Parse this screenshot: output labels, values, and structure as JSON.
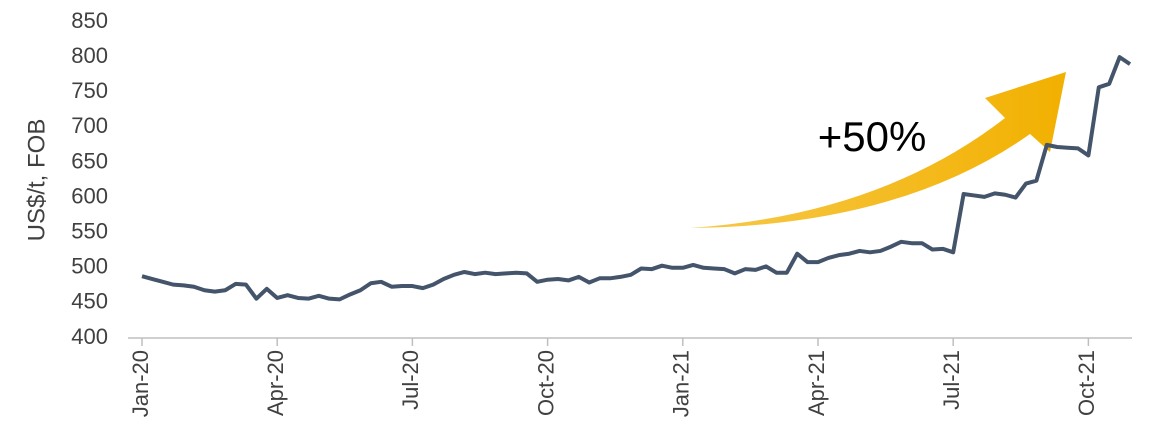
{
  "chart_data": {
    "type": "line",
    "y_label": "US$/t, FOB",
    "annotation": "+50%",
    "categories": [
      "Jan-20",
      null,
      null,
      null,
      null,
      null,
      null,
      null,
      null,
      null,
      null,
      null,
      null,
      "Apr-20",
      null,
      null,
      null,
      null,
      null,
      null,
      null,
      null,
      null,
      null,
      null,
      null,
      "Jul-20",
      null,
      null,
      null,
      null,
      null,
      null,
      null,
      null,
      null,
      null,
      null,
      null,
      "Oct-20",
      null,
      null,
      null,
      null,
      null,
      null,
      null,
      null,
      null,
      null,
      null,
      null,
      "Jan-21",
      null,
      null,
      null,
      null,
      null,
      null,
      null,
      null,
      null,
      null,
      null,
      null,
      "Apr-21",
      null,
      null,
      null,
      null,
      null,
      null,
      null,
      null,
      null,
      null,
      null,
      null,
      "Jul-21",
      null,
      null,
      null,
      null,
      null,
      null,
      null,
      null,
      null,
      null,
      null,
      null,
      "Oct-21",
      null,
      null,
      null,
      null
    ],
    "series": [
      {
        "color": "#44546a",
        "values": [
          488,
          484,
          480,
          476,
          475,
          473,
          468,
          466,
          468,
          477,
          476,
          456,
          470,
          457,
          461,
          457,
          456,
          460,
          456,
          455,
          462,
          468,
          478,
          480,
          473,
          474,
          474,
          471,
          476,
          484,
          490,
          494,
          491,
          493,
          491,
          492,
          493,
          492,
          480,
          483,
          484,
          482,
          487,
          479,
          485,
          485,
          487,
          490,
          499,
          498,
          503,
          500,
          500,
          504,
          500,
          499,
          498,
          492,
          498,
          497,
          502,
          493,
          493,
          520,
          508,
          508,
          514,
          518,
          520,
          524,
          522,
          524,
          530,
          537,
          535,
          535,
          526,
          527,
          522,
          605,
          603,
          601,
          606,
          604,
          600,
          620,
          624,
          675,
          672,
          671,
          670,
          660,
          757,
          762,
          800,
          790
        ]
      }
    ],
    "ylim": [
      400,
      850
    ],
    "yticks": [
      400,
      450,
      500,
      550,
      600,
      650,
      700,
      750,
      800,
      850
    ]
  }
}
